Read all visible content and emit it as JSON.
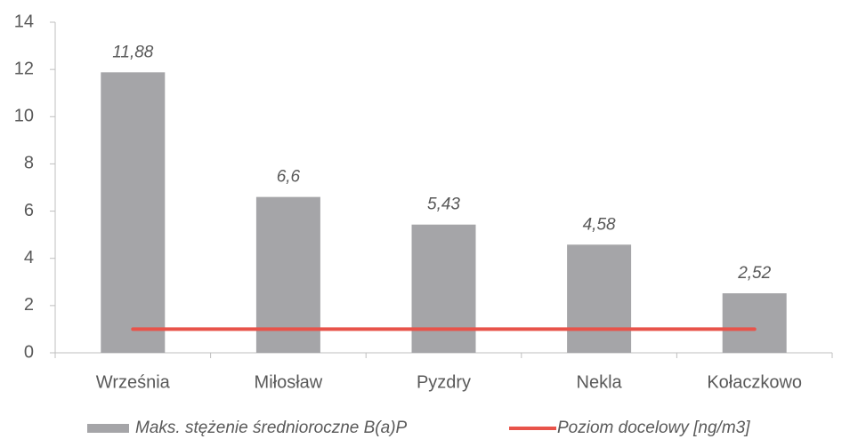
{
  "chart_data": {
    "type": "bar",
    "categories": [
      "Września",
      "Miłosław",
      "Pyzdry",
      "Nekla",
      "Kołaczkowo"
    ],
    "series": [
      {
        "name": "Maks. stężenie średnioroczne B(a)P",
        "color": "#a5a5a8",
        "type": "bar",
        "values": [
          11.88,
          6.6,
          5.43,
          4.58,
          2.52
        ],
        "value_labels": [
          "11,88",
          "6,6",
          "5,43",
          "4,58",
          "2,52"
        ]
      },
      {
        "name": "Poziom docelowy [ng/m3]",
        "color": "#e8534a",
        "type": "line",
        "values": [
          1,
          1,
          1,
          1,
          1
        ]
      }
    ],
    "ylim": [
      0,
      14
    ],
    "yticks": [
      0,
      2,
      4,
      6,
      8,
      10,
      12,
      14
    ],
    "grid": false,
    "legend": "bottom"
  }
}
